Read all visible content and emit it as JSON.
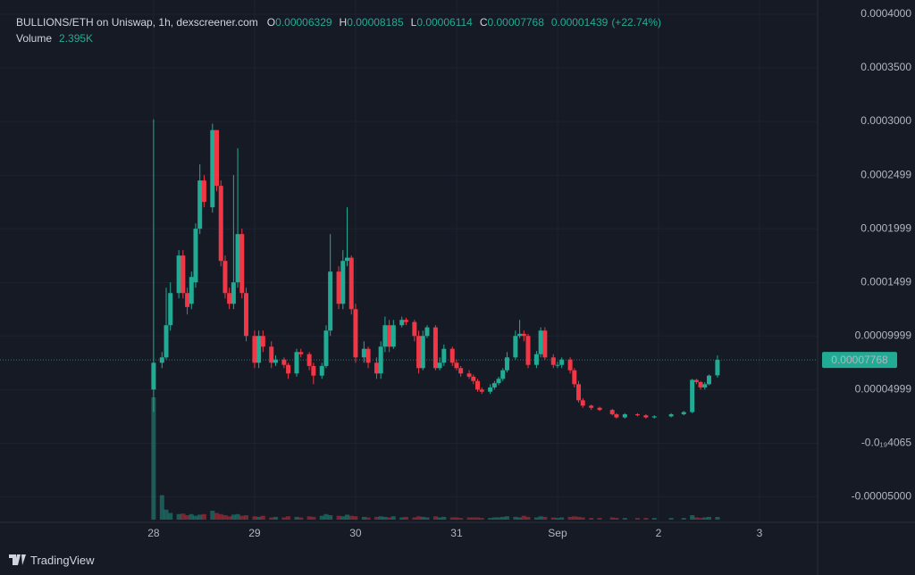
{
  "chart_data": {
    "type": "candlestick",
    "title": "BULLIONS/ETH on Uniswap, 1h, dexscreener.com",
    "ohlc_labels": [
      "O",
      "H",
      "L",
      "C"
    ],
    "change": 1.439e-05,
    "change_label": "(+22.74%)",
    "up_color": "#22ab94",
    "down_color": "#f23645",
    "grid": true,
    "x": [
      0,
      2,
      3,
      4,
      6,
      7,
      8,
      9,
      10,
      11,
      12,
      14,
      15,
      16,
      17,
      18,
      19,
      20,
      21,
      22,
      24,
      25,
      26,
      28,
      29,
      31,
      32,
      34,
      35,
      37,
      38,
      40,
      41,
      42,
      44,
      45,
      46,
      47,
      48,
      50,
      51,
      53,
      54,
      55,
      56,
      57,
      59,
      60,
      62,
      63,
      64,
      65,
      67,
      68,
      69,
      71,
      72,
      73,
      75,
      76,
      77,
      78,
      80,
      81,
      82,
      83,
      84,
      86,
      87,
      88,
      89,
      91,
      92,
      93,
      95,
      96,
      97,
      99,
      100,
      101,
      102,
      104,
      106,
      109,
      110,
      112,
      115,
      117,
      119,
      123,
      126,
      128,
      129,
      130,
      131,
      132,
      134
    ],
    "open": [
      5e-05,
      7.5e-05,
      8e-05,
      0.00011,
      0.00014,
      0.000175,
      0.00014,
      0.00013,
      0.00015,
      0.0002,
      0.000245,
      0.00022,
      0.000292,
      0.00024,
      0.00017,
      0.00014,
      0.00013,
      0.00015,
      0.000195,
      0.00014,
      0.0001,
      7.5e-05,
      0.0001,
      9e-05,
      7.5e-05,
      7.8e-05,
      7.3e-05,
      6.5e-05,
      8.5e-05,
      8.3e-05,
      7.2e-05,
      6.3e-05,
      7.2e-05,
      0.000105,
      0.00016,
      0.00013,
      0.00017,
      0.000173,
      0.000125,
      8e-05,
      8.8e-05,
      7.5e-05,
      6.5e-05,
      9e-05,
      0.00011,
      9e-05,
      0.00011,
      0.000115,
      0.000113,
      0.0001,
      7e-05,
      0.0001,
      0.000108,
      7e-05,
      7.5e-05,
      8.8e-05,
      7.5e-05,
      7e-05,
      6.5e-05,
      6.2e-05,
      5.8e-05,
      5e-05,
      4.8e-05,
      5.2e-05,
      5.6e-05,
      6e-05,
      6.8e-05,
      8e-05,
      0.0001,
      0.000102,
      0.0001,
      7.3e-05,
      8.3e-05,
      0.000105,
      8e-05,
      7.3e-05,
      7.3e-05,
      7.8e-05,
      6.8e-05,
      5.5e-05,
      4e-05,
      3.5e-05,
      3.3e-05,
      3.1e-05,
      2.7e-05,
      2.4e-05,
      2.7e-05,
      2.6e-05,
      2.4e-05,
      2.5e-05,
      2.7e-05,
      2.9e-05,
      5.9e-05,
      5.7e-05,
      5.2e-05,
      5.5e-05,
      6.329e-05
    ],
    "high": [
      0.000302,
      8.5e-05,
      0.000145,
      0.00015,
      0.00018,
      0.00018,
      0.000145,
      0.00016,
      0.000205,
      0.00026,
      0.00025,
      0.000298,
      0.000292,
      0.000245,
      0.000175,
      0.000145,
      0.00025,
      0.000275,
      0.0002,
      0.000145,
      0.000105,
      0.000105,
      0.000105,
      9.5e-05,
      8.2e-05,
      8e-05,
      7.5e-05,
      8.8e-05,
      8.8e-05,
      8.5e-05,
      7.5e-05,
      7.5e-05,
      0.00011,
      0.000195,
      0.000165,
      0.00018,
      0.00022,
      0.000175,
      0.00013,
      9.5e-05,
      9e-05,
      8e-05,
      9.5e-05,
      0.000118,
      0.000115,
      0.000115,
      0.000118,
      0.000117,
      0.000115,
      0.000105,
      0.000105,
      0.00011,
      0.00011,
      8e-05,
      9.2e-05,
      9e-05,
      7.8e-05,
      7.2e-05,
      6.8e-05,
      6.4e-05,
      6e-05,
      5.2e-05,
      5.5e-05,
      5.8e-05,
      6.2e-05,
      7e-05,
      8.5e-05,
      0.000105,
      0.000115,
      0.000105,
      0.000102,
      8.6e-05,
      0.000108,
      0.000108,
      8.3e-05,
      7.6e-05,
      8e-05,
      8e-05,
      7e-05,
      5.8e-05,
      4.2e-05,
      3.6e-05,
      3.4e-05,
      3.2e-05,
      2.8e-05,
      2.8e-05,
      2.8e-05,
      2.7e-05,
      2.6e-05,
      2.8e-05,
      3e-05,
      6e-05,
      6e-05,
      5.8e-05,
      5.7e-05,
      6.4e-05,
      8.185e-05
    ],
    "low": [
      2.9e-05,
      7e-05,
      7.8e-05,
      0.000105,
      0.000135,
      0.000135,
      0.00012,
      0.000125,
      0.000145,
      0.000195,
      0.00022,
      0.000215,
      0.000235,
      0.000165,
      0.000135,
      0.000125,
      0.000125,
      0.000145,
      0.000135,
      9.5e-05,
      7e-05,
      7e-05,
      8.5e-05,
      7e-05,
      7.2e-05,
      7e-05,
      6e-05,
      6.2e-05,
      8e-05,
      6.8e-05,
      5.5e-05,
      6e-05,
      7e-05,
      0.0001,
      0.000125,
      0.000125,
      0.000165,
      0.00012,
      7.5e-05,
      7.5e-05,
      7e-05,
      6e-05,
      6e-05,
      8.5e-05,
      8.5e-05,
      8.8e-05,
      0.000108,
      0.00011,
      9.5e-05,
      6.5e-05,
      6.8e-05,
      9.8e-05,
      6.8e-05,
      6.8e-05,
      7.2e-05,
      7.2e-05,
      6.8e-05,
      6.2e-05,
      6e-05,
      5.5e-05,
      4.8e-05,
      4.6e-05,
      4.6e-05,
      5e-05,
      5.4e-05,
      5.8e-05,
      6.6e-05,
      7.8e-05,
      9.8e-05,
      9.5e-05,
      7e-05,
      7e-05,
      8e-05,
      7.8e-05,
      7e-05,
      7e-05,
      7e-05,
      6.5e-05,
      5.2e-05,
      3.8e-05,
      3.3e-05,
      3.1e-05,
      3e-05,
      2.6e-05,
      2.3e-05,
      2.3e-05,
      2.5e-05,
      2.3e-05,
      2.3e-05,
      2.4e-05,
      2.6e-05,
      2.8e-05,
      5.5e-05,
      5e-05,
      5e-05,
      5.4e-05,
      6.114e-05
    ],
    "close": [
      7.5e-05,
      8e-05,
      0.00011,
      0.00014,
      0.000175,
      0.00014,
      0.000127,
      0.000155,
      0.0002,
      0.000245,
      0.000225,
      0.000292,
      0.00024,
      0.00017,
      0.00014,
      0.00013,
      0.00015,
      0.000195,
      0.00014,
      0.0001,
      7.5e-05,
      0.0001,
      9e-05,
      7.5e-05,
      7.8e-05,
      7.3e-05,
      6.5e-05,
      8.5e-05,
      8.3e-05,
      7.2e-05,
      6.3e-05,
      7.2e-05,
      0.000105,
      0.00016,
      0.00013,
      0.00017,
      0.000173,
      0.000125,
      8e-05,
      8.8e-05,
      7.5e-05,
      6.5e-05,
      9e-05,
      0.00011,
      9e-05,
      0.00011,
      0.000115,
      0.000113,
      0.0001,
      7e-05,
      0.0001,
      0.000108,
      7e-05,
      7.5e-05,
      8.8e-05,
      7.5e-05,
      7e-05,
      6.5e-05,
      6.2e-05,
      5.8e-05,
      5e-05,
      4.8e-05,
      5.2e-05,
      5.6e-05,
      6e-05,
      6.8e-05,
      8e-05,
      0.0001,
      0.000102,
      0.0001,
      7.3e-05,
      8.3e-05,
      0.000105,
      8e-05,
      7.3e-05,
      7.3e-05,
      7.8e-05,
      6.8e-05,
      5.5e-05,
      4e-05,
      3.5e-05,
      3.3e-05,
      3.1e-05,
      2.7e-05,
      2.4e-05,
      2.7e-05,
      2.6e-05,
      2.4e-05,
      2.5e-05,
      2.7e-05,
      2.9e-05,
      5.9e-05,
      5.7e-05,
      5.2e-05,
      5.5e-05,
      6.3e-05,
      7.768e-05
    ],
    "volume": {
      "name": "Volume",
      "current_label": "2.395K",
      "values": [
        110000,
        22000,
        9000,
        6000,
        5000,
        5500,
        4000,
        5000,
        3500,
        4500,
        5000,
        8000,
        6000,
        5000,
        4000,
        3000,
        4500,
        5000,
        3500,
        4000,
        3000,
        2500,
        3500,
        2000,
        2500,
        2000,
        3000,
        2500,
        2000,
        3000,
        2500,
        3500,
        5000,
        4000,
        3500,
        3000,
        4500,
        3500,
        3000,
        2500,
        2000,
        2500,
        3000,
        2500,
        2000,
        3000,
        2000,
        2500,
        2000,
        3000,
        2500,
        2000,
        3000,
        2000,
        2500,
        2000,
        2000,
        1500,
        2000,
        2000,
        2000,
        1500,
        1500,
        2000,
        2000,
        2500,
        3000,
        2500,
        2000,
        3500,
        2500,
        2000,
        3000,
        2500,
        2000,
        1500,
        2000,
        2500,
        3000,
        2500,
        2000,
        1500,
        1500,
        2000,
        1500,
        1500,
        1500,
        1500,
        1500,
        1500,
        1500,
        4000,
        2000,
        1500,
        2000,
        2500,
        2395
      ]
    },
    "xlim": [
      -36.5,
      157.8
    ],
    "xticks": [
      {
        "value": 0,
        "label": "28"
      },
      {
        "value": 24,
        "label": "29"
      },
      {
        "value": 48,
        "label": "30"
      },
      {
        "value": 72,
        "label": "31"
      },
      {
        "value": 96,
        "label": "Sep"
      },
      {
        "value": 120,
        "label": "2"
      },
      {
        "value": 144,
        "label": "3"
      }
    ],
    "ylim": [
      -7.38e-05,
      0.0004133
    ],
    "yticks": [
      {
        "value": 0.0004,
        "label": "0.0004000"
      },
      {
        "value": 0.00035,
        "label": "0.0003500"
      },
      {
        "value": 0.0003,
        "label": "0.0003000"
      },
      0.0002499,
      0.0001999,
      0.0001499,
      9.999e-05,
      4.999e-05,
      {
        "value": -4.065e-20,
        "label": "-0.0₁₉4065"
      },
      {
        "value": -5e-05,
        "label": "-0.00005000"
      }
    ]
  },
  "brand": "TradingView"
}
